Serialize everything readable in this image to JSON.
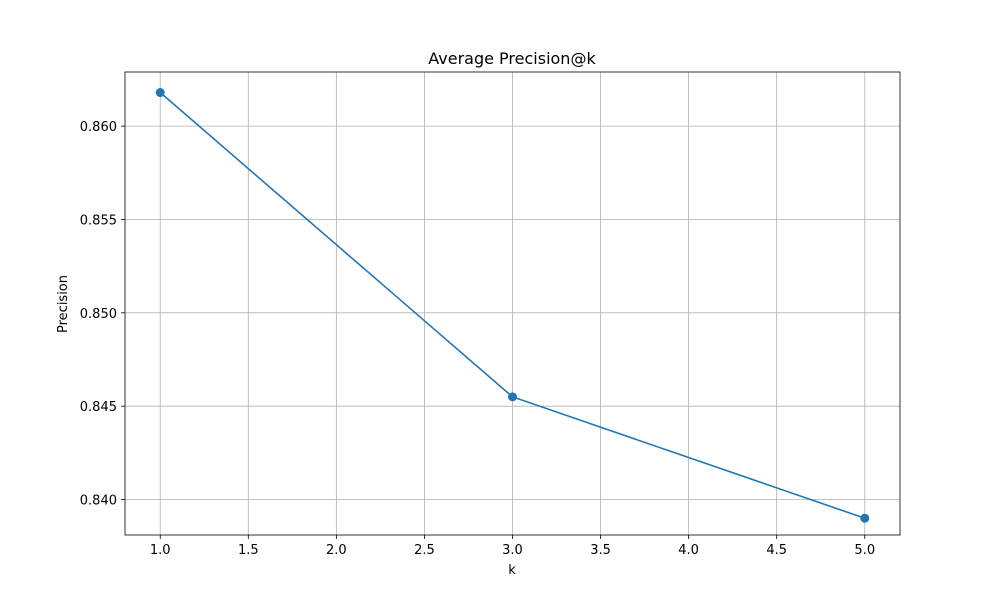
{
  "chart_data": {
    "type": "line",
    "title": "Average Precision@k",
    "xlabel": "k",
    "ylabel": "Precision",
    "xlim": [
      0.8,
      5.2
    ],
    "ylim": [
      0.8381,
      0.8629
    ],
    "x_ticks": [
      1.0,
      1.5,
      2.0,
      2.5,
      3.0,
      3.5,
      4.0,
      4.5,
      5.0
    ],
    "x_tick_labels": [
      "1.0",
      "1.5",
      "2.0",
      "2.5",
      "3.0",
      "3.5",
      "4.0",
      "4.5",
      "5.0"
    ],
    "y_ticks": [
      0.84,
      0.845,
      0.85,
      0.855,
      0.86
    ],
    "y_tick_labels": [
      "0.840",
      "0.845",
      "0.850",
      "0.855",
      "0.860"
    ],
    "grid": true,
    "series": [
      {
        "x": [
          1,
          3,
          5
        ],
        "y": [
          0.8618,
          0.8455,
          0.839
        ],
        "color": "#1f77b4",
        "marker": "circle"
      }
    ]
  }
}
